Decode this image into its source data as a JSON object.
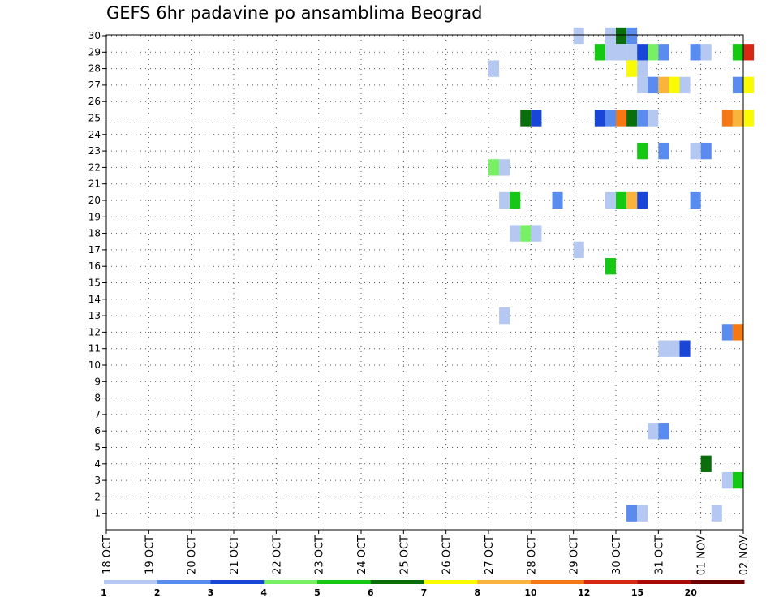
{
  "chart_data": {
    "type": "heatmap",
    "title": "GEFS 6hr padavine po ansamblima Beograd",
    "xlabel": "",
    "ylabel": "",
    "x_ticks": [
      "18 OCT",
      "19 OCT",
      "20 OCT",
      "21 OCT",
      "22 OCT",
      "23 OCT",
      "24 OCT",
      "25 OCT",
      "26 OCT",
      "27 OCT",
      "28 OCT",
      "29 OCT",
      "30 OCT",
      "31 OCT",
      "01 NOV",
      "02 NOV"
    ],
    "y_ticks": [
      1,
      2,
      3,
      4,
      5,
      6,
      7,
      8,
      9,
      10,
      11,
      12,
      13,
      14,
      15,
      16,
      17,
      18,
      19,
      20,
      21,
      22,
      23,
      24,
      25,
      26,
      27,
      28,
      29,
      30
    ],
    "time_step_hours": 6,
    "grid": true,
    "colorbar": {
      "position": "bottom",
      "labels": [
        "1",
        "2",
        "3",
        "4",
        "5",
        "6",
        "7",
        "8",
        "10",
        "12",
        "15",
        "20"
      ],
      "colors": [
        "#b4c8f2",
        "#5a8cf0",
        "#1a46d8",
        "#78f064",
        "#14c814",
        "#0a6e0a",
        "#fafa00",
        "#fab43c",
        "#f57814",
        "#d72814",
        "#aa0a0a",
        "#6e0000"
      ]
    },
    "cells": [
      {
        "member": 30,
        "time": "29 OCT 00",
        "level": 1
      },
      {
        "member": 30,
        "time": "29 OCT 18",
        "level": 1
      },
      {
        "member": 30,
        "time": "30 OCT 00",
        "level": 6
      },
      {
        "member": 30,
        "time": "30 OCT 06",
        "level": 2
      },
      {
        "member": 29,
        "time": "29 OCT 12",
        "level": 5
      },
      {
        "member": 29,
        "time": "29 OCT 18",
        "level": 1
      },
      {
        "member": 29,
        "time": "30 OCT 00",
        "level": 1
      },
      {
        "member": 29,
        "time": "30 OCT 06",
        "level": 1
      },
      {
        "member": 29,
        "time": "30 OCT 12",
        "level": 3
      },
      {
        "member": 29,
        "time": "30 OCT 18",
        "level": 4
      },
      {
        "member": 29,
        "time": "31 OCT 00",
        "level": 2
      },
      {
        "member": 29,
        "time": "31 OCT 18",
        "level": 2
      },
      {
        "member": 29,
        "time": "01 NOV 00",
        "level": 1
      },
      {
        "member": 29,
        "time": "01 NOV 18",
        "level": 5
      },
      {
        "member": 29,
        "time": "02 NOV 00",
        "level": 10
      },
      {
        "member": 28,
        "time": "27 OCT 00",
        "level": 1
      },
      {
        "member": 28,
        "time": "30 OCT 06",
        "level": 7
      },
      {
        "member": 28,
        "time": "30 OCT 12",
        "level": 1
      },
      {
        "member": 27,
        "time": "30 OCT 12",
        "level": 1
      },
      {
        "member": 27,
        "time": "30 OCT 18",
        "level": 2
      },
      {
        "member": 27,
        "time": "31 OCT 00",
        "level": 8
      },
      {
        "member": 27,
        "time": "31 OCT 06",
        "level": 7
      },
      {
        "member": 27,
        "time": "31 OCT 12",
        "level": 1
      },
      {
        "member": 27,
        "time": "01 NOV 18",
        "level": 2
      },
      {
        "member": 27,
        "time": "02 NOV 00",
        "level": 7
      },
      {
        "member": 25,
        "time": "27 OCT 18",
        "level": 6
      },
      {
        "member": 25,
        "time": "28 OCT 00",
        "level": 3
      },
      {
        "member": 25,
        "time": "29 OCT 12",
        "level": 3
      },
      {
        "member": 25,
        "time": "29 OCT 18",
        "level": 2
      },
      {
        "member": 25,
        "time": "30 OCT 00",
        "level": 9
      },
      {
        "member": 25,
        "time": "30 OCT 06",
        "level": 6
      },
      {
        "member": 25,
        "time": "30 OCT 12",
        "level": 2
      },
      {
        "member": 25,
        "time": "30 OCT 18",
        "level": 1
      },
      {
        "member": 25,
        "time": "01 NOV 12",
        "level": 9
      },
      {
        "member": 25,
        "time": "01 NOV 18",
        "level": 8
      },
      {
        "member": 25,
        "time": "02 NOV 00",
        "level": 7
      },
      {
        "member": 23,
        "time": "30 OCT 12",
        "level": 5
      },
      {
        "member": 23,
        "time": "31 OCT 00",
        "level": 2
      },
      {
        "member": 23,
        "time": "31 OCT 18",
        "level": 1
      },
      {
        "member": 23,
        "time": "01 NOV 00",
        "level": 2
      },
      {
        "member": 22,
        "time": "27 OCT 00",
        "level": 4
      },
      {
        "member": 22,
        "time": "27 OCT 06",
        "level": 1
      },
      {
        "member": 20,
        "time": "27 OCT 06",
        "level": 1
      },
      {
        "member": 20,
        "time": "27 OCT 12",
        "level": 5
      },
      {
        "member": 20,
        "time": "28 OCT 12",
        "level": 2
      },
      {
        "member": 20,
        "time": "29 OCT 18",
        "level": 1
      },
      {
        "member": 20,
        "time": "30 OCT 00",
        "level": 5
      },
      {
        "member": 20,
        "time": "30 OCT 06",
        "level": 8
      },
      {
        "member": 20,
        "time": "30 OCT 12",
        "level": 3
      },
      {
        "member": 20,
        "time": "31 OCT 18",
        "level": 2
      },
      {
        "member": 18,
        "time": "27 OCT 12",
        "level": 1
      },
      {
        "member": 18,
        "time": "27 OCT 18",
        "level": 4
      },
      {
        "member": 18,
        "time": "28 OCT 00",
        "level": 1
      },
      {
        "member": 17,
        "time": "29 OCT 00",
        "level": 1
      },
      {
        "member": 16,
        "time": "29 OCT 18",
        "level": 5
      },
      {
        "member": 13,
        "time": "27 OCT 06",
        "level": 1
      },
      {
        "member": 12,
        "time": "01 NOV 12",
        "level": 2
      },
      {
        "member": 12,
        "time": "01 NOV 18",
        "level": 9
      },
      {
        "member": 11,
        "time": "31 OCT 00",
        "level": 1
      },
      {
        "member": 11,
        "time": "31 OCT 06",
        "level": 1
      },
      {
        "member": 11,
        "time": "31 OCT 12",
        "level": 3
      },
      {
        "member": 6,
        "time": "30 OCT 18",
        "level": 1
      },
      {
        "member": 6,
        "time": "31 OCT 00",
        "level": 2
      },
      {
        "member": 4,
        "time": "01 NOV 00",
        "level": 6
      },
      {
        "member": 3,
        "time": "01 NOV 12",
        "level": 1
      },
      {
        "member": 3,
        "time": "01 NOV 18",
        "level": 5
      },
      {
        "member": 1,
        "time": "30 OCT 06",
        "level": 2
      },
      {
        "member": 1,
        "time": "30 OCT 12",
        "level": 1
      },
      {
        "member": 1,
        "time": "01 NOV 06",
        "level": 1
      }
    ]
  }
}
